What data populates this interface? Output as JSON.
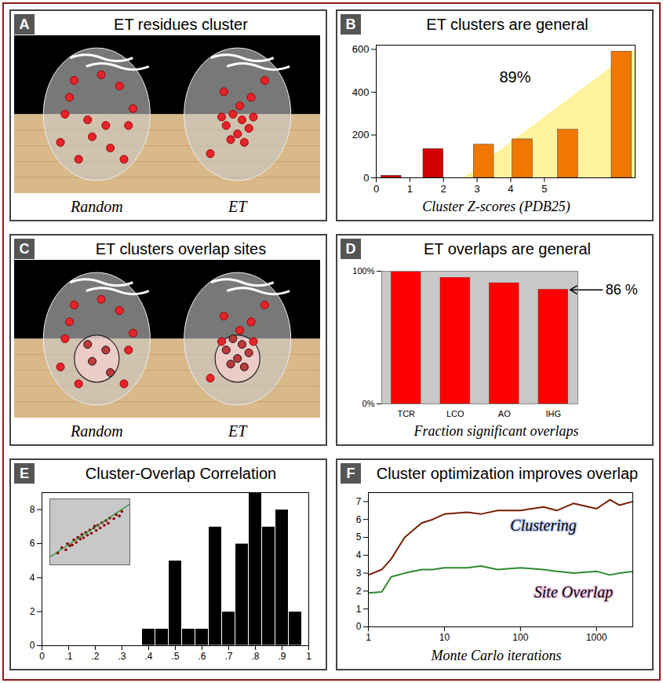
{
  "diagrams": [
    {
      "panel": "A",
      "title": "ET residues cluster",
      "labels": [
        "Random",
        "ET"
      ]
    },
    {
      "panel": "C",
      "title": "ET clusters overlap sites",
      "labels": [
        "Random",
        "ET"
      ]
    }
  ],
  "chart_data": [
    {
      "panel": "B",
      "type": "bar",
      "title": "ET clusters are general",
      "x_label": "Cluster Z-scores (PDB25)",
      "x": [
        0.45,
        1.7,
        3.2,
        4.35,
        5.7,
        7.3
      ],
      "values": [
        10,
        135,
        155,
        180,
        225,
        590
      ],
      "colors": [
        "#d40000",
        "#d40000",
        "#f07800",
        "#f07800",
        "#f07800",
        "#f07800"
      ],
      "xlim": [
        0,
        7.7
      ],
      "xticks": [
        0,
        1,
        2,
        3,
        4,
        5
      ],
      "ylim": [
        0,
        620
      ],
      "yticks": [
        0,
        200,
        400,
        600
      ],
      "highlight": {
        "x": [
          2.6,
          7.7
        ],
        "y": [
          0,
          600
        ],
        "color": "#fff3a0"
      },
      "annotation": {
        "text": "89%"
      }
    },
    {
      "panel": "D",
      "type": "bar",
      "title": "ET overlaps are general",
      "x_label": "Fraction significant overlaps",
      "categories": [
        "TCR",
        "LCO",
        "AO",
        "IHG"
      ],
      "values": [
        100,
        95,
        91,
        86
      ],
      "color": "#ff0000",
      "ylim": [
        0,
        100
      ],
      "yticks": [
        {
          "value": 0,
          "label": "0%"
        },
        {
          "value": 100,
          "label": "100%"
        }
      ],
      "grid": true,
      "annotation": {
        "text": "86 %",
        "category": "IHG"
      }
    },
    {
      "panel": "E",
      "type": "histogram",
      "title": "Cluster-Overlap Correlation",
      "bins": [
        0.375,
        0.425,
        0.475,
        0.525,
        0.575,
        0.625,
        0.675,
        0.725,
        0.775,
        0.825,
        0.875,
        0.925,
        0.975
      ],
      "counts": [
        1,
        1,
        5,
        1,
        1,
        7,
        2,
        6,
        9,
        7,
        8,
        2
      ],
      "color": "#000000",
      "xlim": [
        0,
        1
      ],
      "xticks": [
        0,
        {
          "value": 0.1,
          "label": ".1"
        },
        {
          "value": 0.2,
          "label": ".2"
        },
        {
          "value": 0.3,
          "label": ".3"
        },
        {
          "value": 0.4,
          "label": ".4"
        },
        {
          "value": 0.5,
          "label": ".5"
        },
        {
          "value": 0.6,
          "label": ".6"
        },
        {
          "value": 0.7,
          "label": ".7"
        },
        {
          "value": 0.8,
          "label": ".8"
        },
        {
          "value": 0.9,
          "label": ".9"
        },
        1
      ],
      "ylim": [
        0,
        9
      ],
      "yticks": [
        0,
        2,
        4,
        6,
        8
      ],
      "inset": {
        "type": "scatter",
        "color": "#8b0000",
        "tick_labels": false,
        "x": [
          1,
          1.5,
          2,
          2.2,
          2.8,
          3,
          3.3,
          3.5,
          3.8,
          4,
          4.2,
          4.5,
          4.7,
          5,
          5.2,
          5.5,
          5.8,
          6,
          6.3,
          6.5,
          6.8,
          7,
          7.3,
          7.5,
          8,
          8.3,
          8.7,
          9,
          2.5,
          5.6
        ],
        "y": [
          1.8,
          2.6,
          2.3,
          3.2,
          3.0,
          3.8,
          3.4,
          4.2,
          3.9,
          4.6,
          4.1,
          4.9,
          4.5,
          5.3,
          4.8,
          5.6,
          5.2,
          6.0,
          5.6,
          6.4,
          6.0,
          6.7,
          6.3,
          7.1,
          7.0,
          7.6,
          7.4,
          8.1,
          2.9,
          5.9
        ],
        "fit": {
          "x": [
            0,
            10
          ],
          "y": [
            1.2,
            9.2
          ],
          "color": "#2e8b2e"
        },
        "xlim": [
          0,
          10
        ],
        "ylim": [
          0,
          10
        ]
      }
    },
    {
      "panel": "F",
      "type": "line",
      "title": "Cluster optimization improves overlap",
      "x_label": "Monte Carlo iterations",
      "log": "x",
      "x": [
        1,
        1.5,
        2,
        3,
        5,
        7,
        10,
        20,
        30,
        50,
        100,
        200,
        300,
        500,
        1000,
        1500,
        2000,
        3000
      ],
      "series": [
        {
          "name": "Clustering",
          "color": "#7a1f00",
          "values": [
            2.9,
            3.2,
            3.8,
            5.0,
            5.8,
            6.0,
            6.3,
            6.4,
            6.3,
            6.5,
            6.5,
            6.7,
            6.5,
            6.9,
            6.6,
            7.1,
            6.8,
            7.0
          ]
        },
        {
          "name": "Site Overlap",
          "color": "#2e8b2e",
          "values": [
            1.9,
            1.95,
            2.8,
            3.0,
            3.2,
            3.2,
            3.3,
            3.3,
            3.4,
            3.2,
            3.3,
            3.2,
            3.1,
            3.0,
            3.1,
            2.9,
            3.0,
            3.1
          ]
        }
      ],
      "xlim": [
        1,
        3000
      ],
      "xticks": [
        1,
        10,
        100,
        1000
      ],
      "ylim": [
        0,
        7.5
      ],
      "yticks": [
        0,
        1,
        2,
        3,
        4,
        5,
        6,
        7
      ]
    }
  ]
}
